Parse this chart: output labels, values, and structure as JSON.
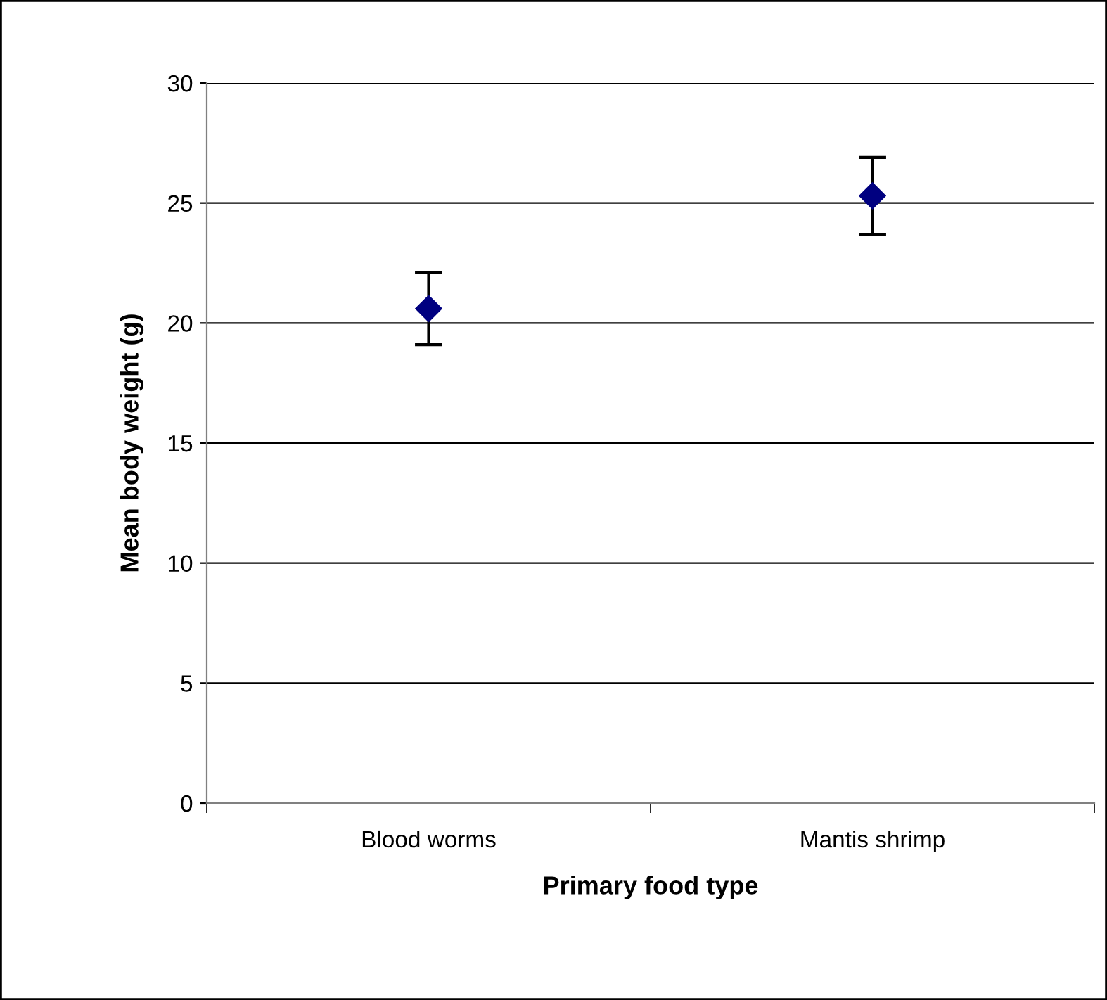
{
  "chart_data": {
    "type": "scatter",
    "xlabel": "Primary food type",
    "ylabel": "Mean body weight (g)",
    "categories": [
      "Blood worms",
      "Mantis shrimp"
    ],
    "series": [
      {
        "color": "#000080",
        "values": [
          20.6,
          25.3
        ],
        "errors": [
          1.5,
          1.6
        ]
      }
    ],
    "ylim": [
      0,
      30
    ],
    "yticks": [
      0,
      5,
      10,
      15,
      20,
      25,
      30
    ],
    "grid": "y",
    "marker": "diamond",
    "legend": false
  }
}
